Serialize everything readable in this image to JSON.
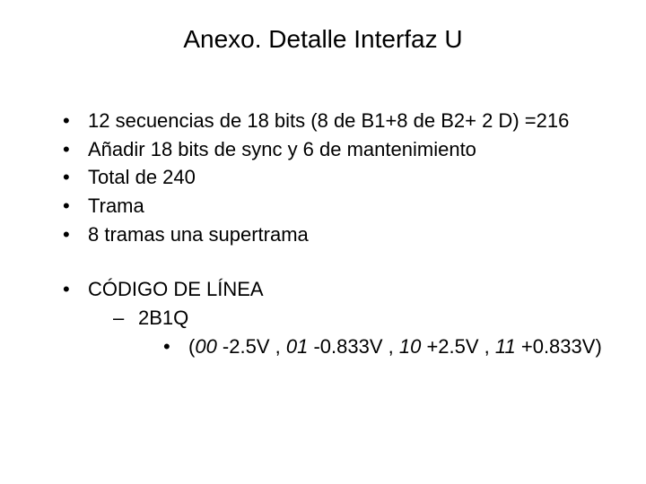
{
  "title": "Anexo. Detalle Interfaz U",
  "bullets": {
    "b1": "12 secuencias de 18 bits (8 de B1+8 de B2+ 2 D) =216",
    "b2": "Añadir 18 bits de sync y 6 de mantenimiento",
    "b3": "Total de 240",
    "b4": "Trama",
    "b5": "8 tramas una supertrama",
    "b6": "CÓDIGO DE LÍNEA",
    "b6_sub": "2B1Q",
    "b6_sub_sub_open": " (",
    "v00": "00",
    "v00_txt": "  -2.5V , ",
    "v01": "01",
    "v01_txt": " -0.833V , ",
    "v10": "10",
    "v10_txt": "  +2.5V , ",
    "v11": "11",
    "v11_txt": " +0.833V)"
  },
  "style": {
    "background_color": "#ffffff",
    "text_color": "#000000",
    "title_fontsize": 28,
    "body_fontsize": 22,
    "font_family": "Arial"
  }
}
